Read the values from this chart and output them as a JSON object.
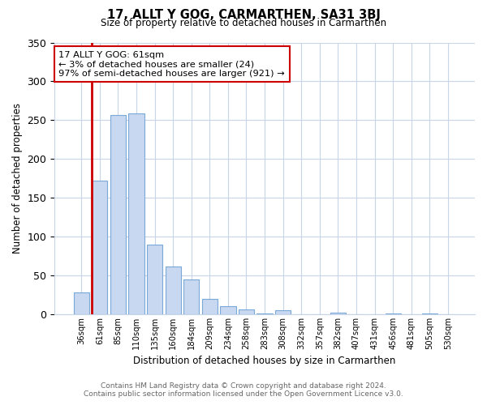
{
  "title": "17, ALLT Y GOG, CARMARTHEN, SA31 3BJ",
  "subtitle": "Size of property relative to detached houses in Carmarthen",
  "xlabel": "Distribution of detached houses by size in Carmarthen",
  "ylabel": "Number of detached properties",
  "bar_color": "#c8d8f0",
  "bar_edge_color": "#7aa8d8",
  "highlight_color": "#cc0000",
  "highlight_index": 1,
  "bin_labels": [
    "36sqm",
    "61sqm",
    "85sqm",
    "110sqm",
    "135sqm",
    "160sqm",
    "184sqm",
    "209sqm",
    "234sqm",
    "258sqm",
    "283sqm",
    "308sqm",
    "332sqm",
    "357sqm",
    "382sqm",
    "407sqm",
    "431sqm",
    "456sqm",
    "481sqm",
    "505sqm",
    "530sqm"
  ],
  "bar_heights": [
    28,
    172,
    257,
    259,
    90,
    62,
    45,
    20,
    11,
    6,
    1,
    5,
    0,
    0,
    2,
    0,
    0,
    1,
    0,
    1,
    0
  ],
  "ylim": [
    0,
    350
  ],
  "yticks": [
    0,
    50,
    100,
    150,
    200,
    250,
    300,
    350
  ],
  "annotation_title": "17 ALLT Y GOG: 61sqm",
  "annotation_line1": "← 3% of detached houses are smaller (24)",
  "annotation_line2": "97% of semi-detached houses are larger (921) →",
  "footer_line1": "Contains HM Land Registry data © Crown copyright and database right 2024.",
  "footer_line2": "Contains public sector information licensed under the Open Government Licence v3.0.",
  "background_color": "#ffffff",
  "grid_color": "#c8d4e8"
}
